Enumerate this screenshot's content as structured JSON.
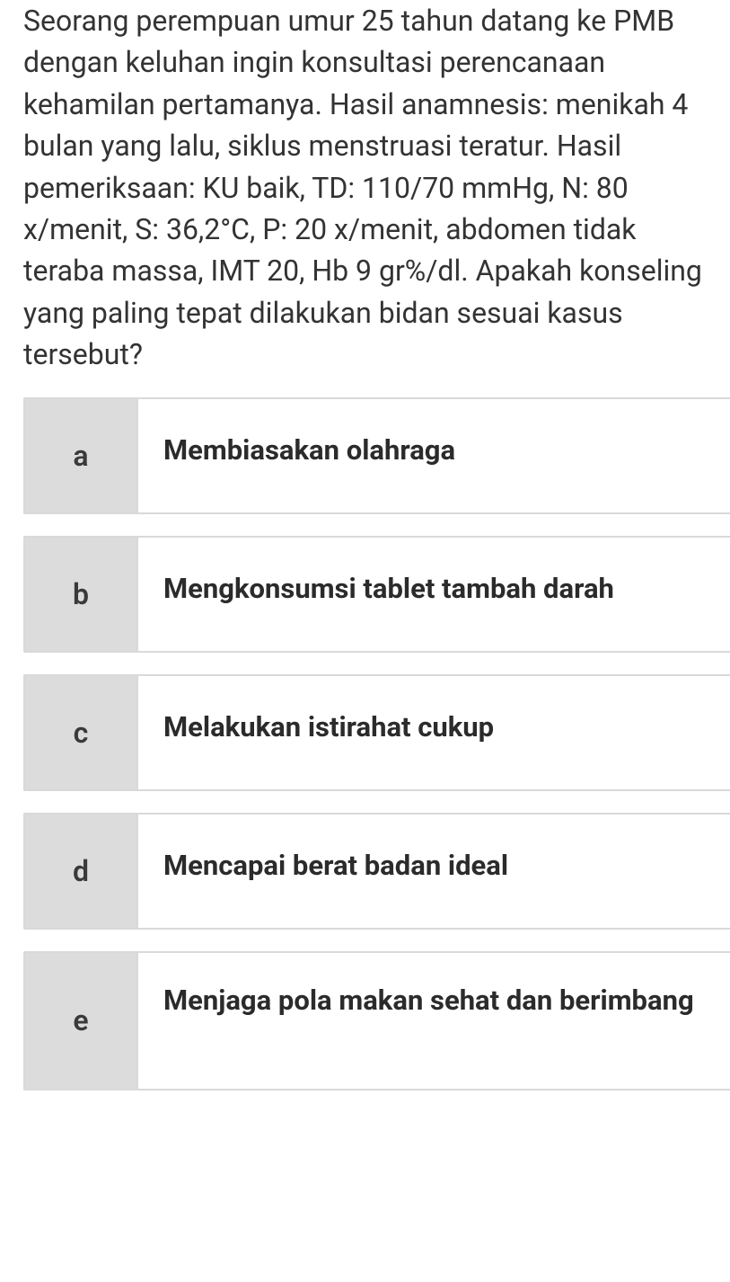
{
  "colors": {
    "background": "#ffffff",
    "text": "#2b2b2b",
    "question_text": "#333333",
    "option_border": "#d9d9d9",
    "option_letter_bg": "#dcdcdc",
    "option_letter_text": "#3a3a3a"
  },
  "typography": {
    "question_fontsize": 32,
    "option_letter_fontsize": 32,
    "option_text_fontsize": 31,
    "question_lineheight": 1.45,
    "option_text_fontweight": 700,
    "option_letter_fontweight": 600
  },
  "layout": {
    "body_width": 813,
    "option_letter_width": 126,
    "option_min_height": 130,
    "option_gap": 24,
    "left_padding": 26
  },
  "question": {
    "text": "Seorang perempuan umur 25 tahun datang ke PMB dengan keluhan ingin konsultasi perencanaan kehamilan pertamanya. Hasil anamnesis: menikah 4 bulan yang lalu, siklus menstruasi teratur. Hasil pemeriksaan: KU baik, TD: 110/70 mmHg, N: 80 x/menit, S: 36,2°C, P: 20 x/menit, abdomen tidak teraba massa, IMT 20, Hb 9 gr%/dl. Apakah konseling yang paling tepat dilakukan bidan sesuai kasus tersebut?"
  },
  "options": [
    {
      "letter": "a",
      "text": "Membiasakan olahraga"
    },
    {
      "letter": "b",
      "text": "Mengkonsumsi tablet tambah darah"
    },
    {
      "letter": "c",
      "text": "Melakukan istirahat cukup"
    },
    {
      "letter": "d",
      "text": "Mencapai berat badan ideal"
    },
    {
      "letter": "e",
      "text": "Menjaga pola makan sehat dan berimbang"
    }
  ]
}
